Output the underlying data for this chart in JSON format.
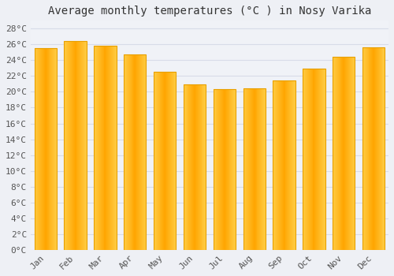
{
  "title": "Average monthly temperatures (°C ) in Nosy Varika",
  "months": [
    "Jan",
    "Feb",
    "Mar",
    "Apr",
    "May",
    "Jun",
    "Jul",
    "Aug",
    "Sep",
    "Oct",
    "Nov",
    "Dec"
  ],
  "values": [
    25.5,
    26.4,
    25.8,
    24.7,
    22.5,
    20.9,
    20.3,
    20.4,
    21.4,
    22.9,
    24.4,
    25.6
  ],
  "bar_color_left": "#FFCC44",
  "bar_color_center": "#FFA500",
  "bar_color_right": "#FFCC44",
  "bar_edge_color": "#E8A000",
  "ylim": [
    0,
    29
  ],
  "ytick_step": 2,
  "background_color": "#eef0f5",
  "plot_bg_color": "#f0f2f7",
  "grid_color": "#d8dce8",
  "title_fontsize": 10,
  "tick_fontsize": 8,
  "font_family": "monospace",
  "bar_width": 0.75
}
